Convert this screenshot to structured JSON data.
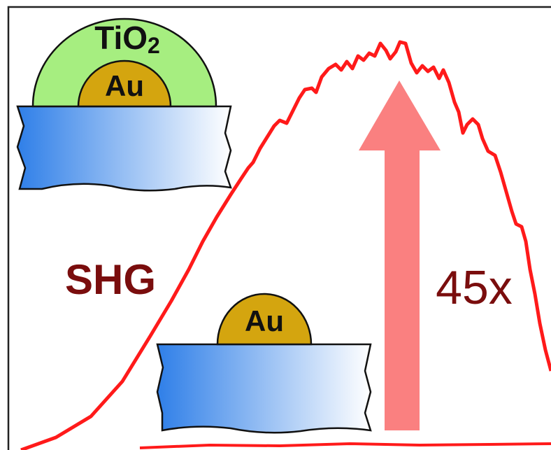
{
  "top_structure": {
    "coating": {
      "base": "TiO",
      "subscript": "2"
    },
    "core": "Au"
  },
  "bottom_structure": {
    "core": "Au"
  },
  "signal_label": "SHG",
  "enhancement_label": "45x"
}
